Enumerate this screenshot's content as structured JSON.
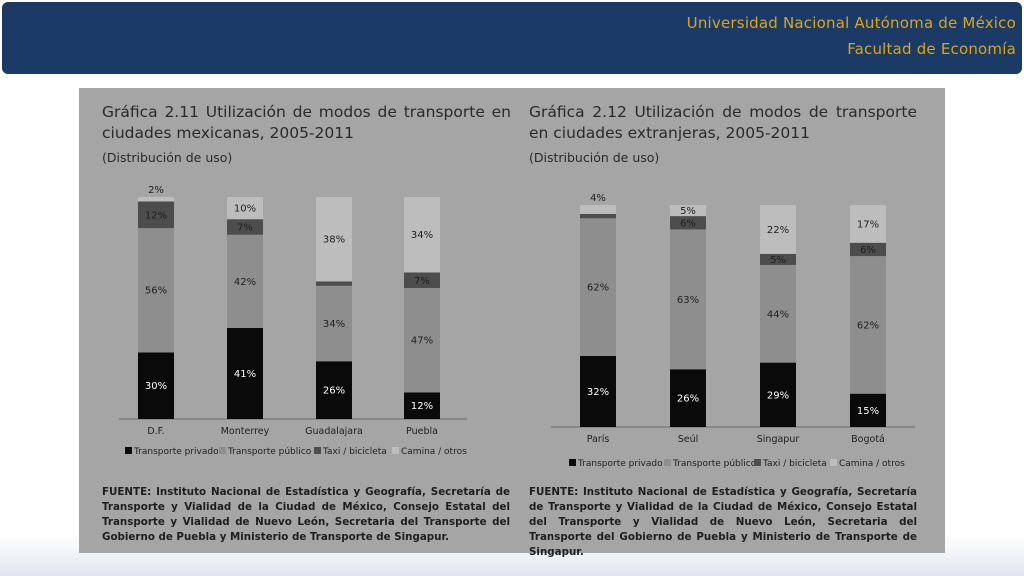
{
  "header": {
    "line1": "Universidad Nacional Autónoma de México",
    "line2": "Facultad de Economía"
  },
  "colors": {
    "header_bg": "#1b3a66",
    "header_text": "#d9a520",
    "panel_bg": "#a5a5a5",
    "transporte_privado": "#0a0a0a",
    "transporte_publico": "#8e8e8e",
    "taxi_bicicleta": "#4d4d4d",
    "camina_otros": "#bdbdbd"
  },
  "left": {
    "title": "Gráfica 2.11 Utilización de modos de transporte en ciudades mexicanas, 2005-2011",
    "subtitle": "(Distribución de uso)",
    "source": "FUENTE: Instituto Nacional de Estadística y Geografía, Secretaría de Transporte y Vialidad de la Ciudad de México, Consejo Estatal del Transporte y Vialidad de Nuevo León, Secretaria del Transporte del Gobierno de Puebla y Ministerio de Transporte de Singapur."
  },
  "right": {
    "title": "Gráfica 2.12 Utilización de modos de transporte en ciudades extranjeras, 2005-2011",
    "subtitle": "(Distribución de uso)",
    "source": "FUENTE: Instituto Nacional de Estadística y Geografía, Secretaría de Transporte y Vialidad de la Ciudad de México, Consejo Estatal del Transporte y Vialidad de Nuevo León, Secretaria del Transporte del Gobierno de Puebla y Ministerio de Transporte de Singapur."
  },
  "chart_data": [
    {
      "type": "bar",
      "stacked": true,
      "title": "Gráfica 2.11 Utilización de modos de transporte en ciudades mexicanas, 2005-2011",
      "subtitle": "(Distribución de uso)",
      "categories": [
        "D.F.",
        "Monterrey",
        "Guadalajara",
        "Puebla"
      ],
      "series": [
        {
          "name": "Transporte privado",
          "values": [
            30,
            41,
            26,
            12
          ]
        },
        {
          "name": "Transporte público",
          "values": [
            56,
            42,
            34,
            47
          ]
        },
        {
          "name": "Taxi / bicicleta",
          "values": [
            12,
            7,
            2,
            7
          ]
        },
        {
          "name": "Camina / otros",
          "values": [
            2,
            10,
            38,
            34
          ]
        }
      ],
      "value_suffix": "%",
      "ylim": [
        0,
        100
      ],
      "legend_position": "bottom",
      "grid": false
    },
    {
      "type": "bar",
      "stacked": true,
      "title": "Gráfica 2.12 Utilización de modos de transporte en ciudades extranjeras, 2005-2011",
      "subtitle": "(Distribución de uso)",
      "categories": [
        "París",
        "Seúl",
        "Singapur",
        "Bogotá"
      ],
      "series": [
        {
          "name": "Transporte privado",
          "values": [
            32,
            26,
            29,
            15
          ]
        },
        {
          "name": "Transporte público",
          "values": [
            62,
            63,
            44,
            62
          ]
        },
        {
          "name": "Taxi / bicicleta",
          "values": [
            2,
            6,
            5,
            6
          ]
        },
        {
          "name": "Camina / otros",
          "values": [
            4,
            5,
            22,
            17
          ]
        }
      ],
      "value_suffix": "%",
      "ylim": [
        0,
        100
      ],
      "legend_position": "bottom",
      "grid": false
    }
  ]
}
